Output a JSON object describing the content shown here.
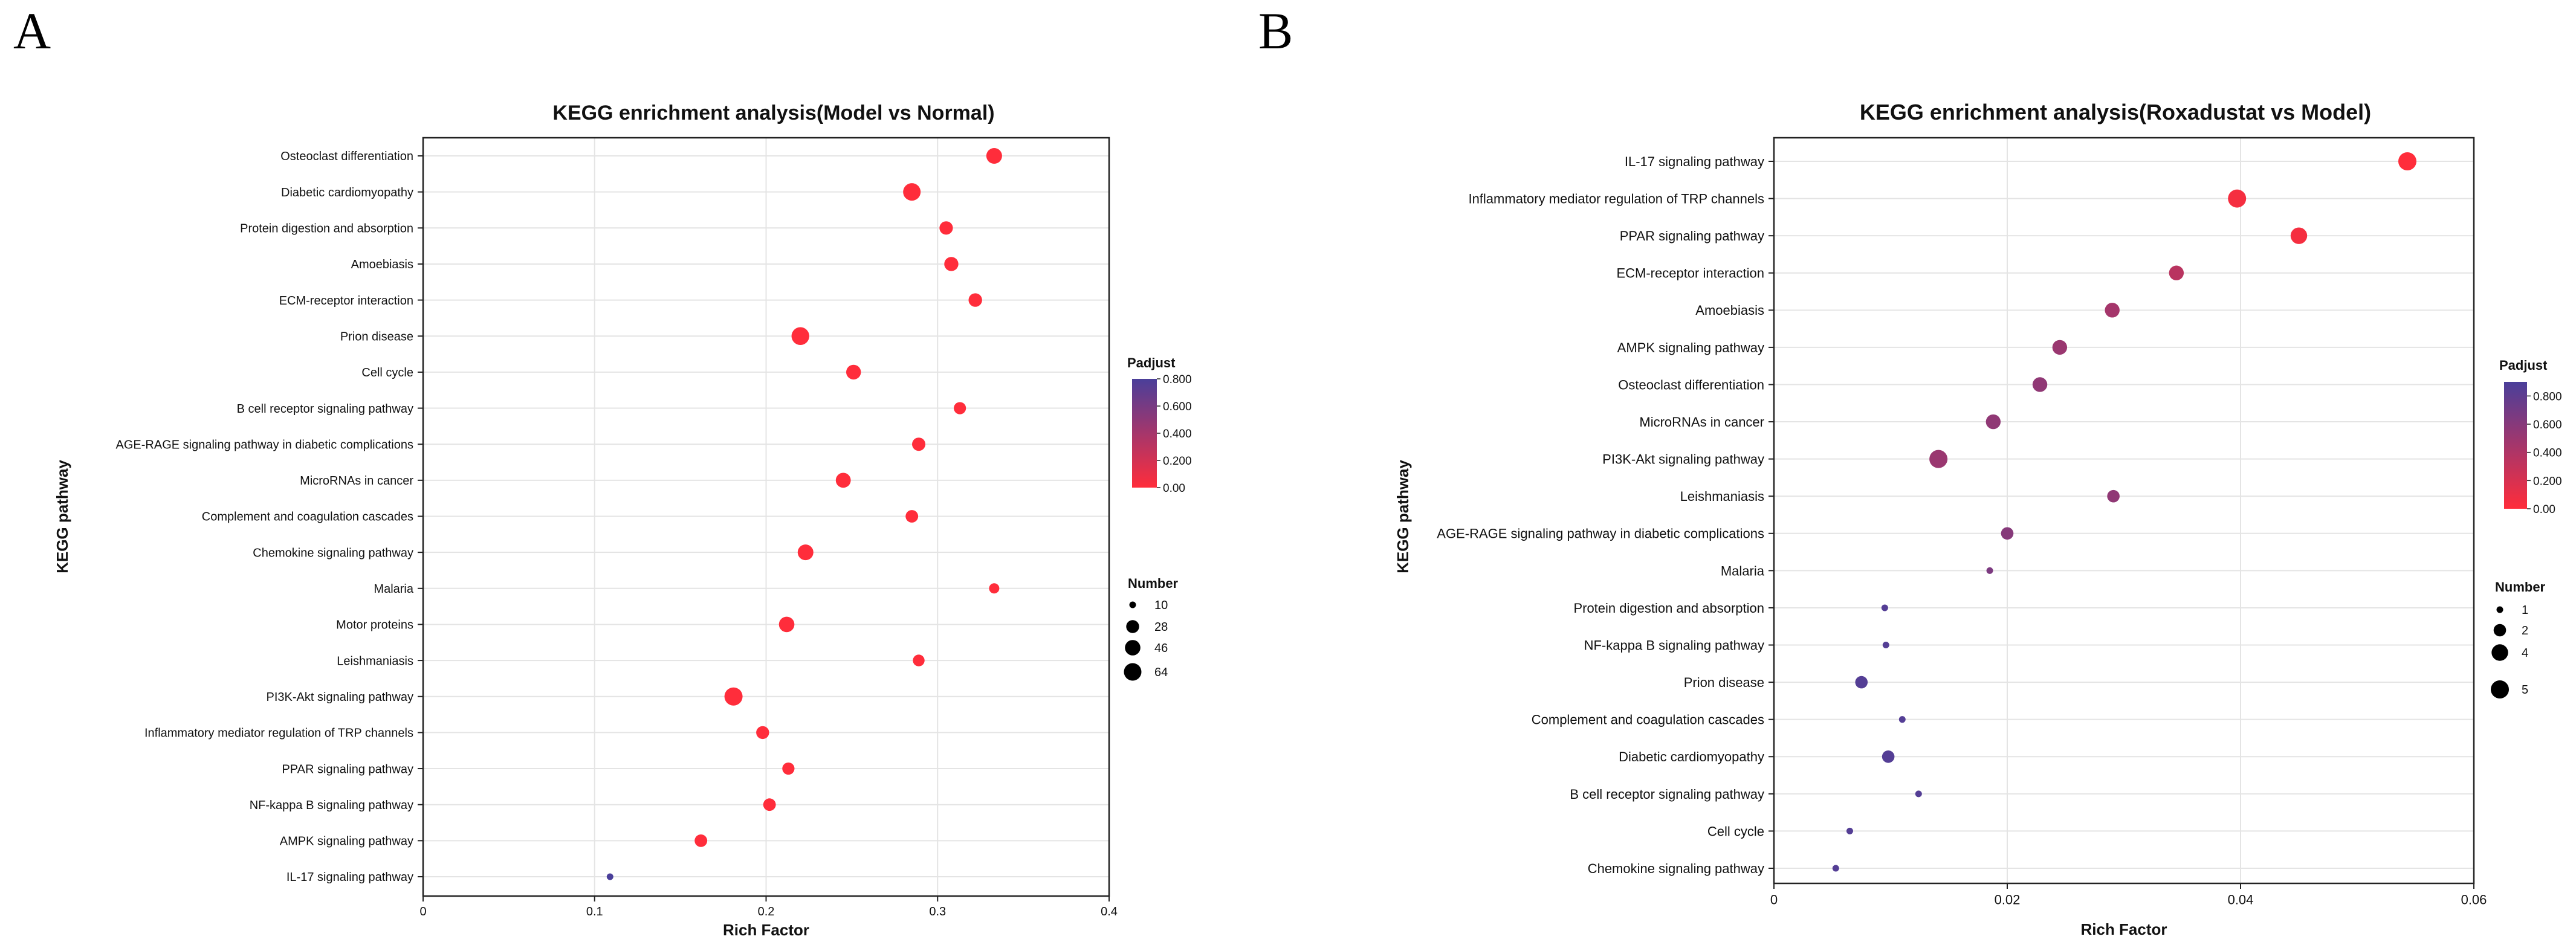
{
  "panels": [
    {
      "letter": "A",
      "chart_data": {
        "type": "scatter",
        "title": "KEGG enrichment analysis(Model vs Normal)",
        "xlabel": "Rich Factor",
        "ylabel": "KEGG pathway",
        "xlim": [
          0,
          0.4
        ],
        "xticks": [
          "0",
          "0.1",
          "0.2",
          "0.3",
          "0.4"
        ],
        "xtick_values": [
          0,
          0.1,
          0.2,
          0.3,
          0.4
        ],
        "grid": true,
        "color_legend": {
          "title": "Padjust",
          "ticks": [
            "0.800",
            "0.600",
            "0.400",
            "0.200",
            "0.00"
          ],
          "tick_values": [
            0.8,
            0.6,
            0.4,
            0.2,
            0.0
          ],
          "range": [
            0,
            0.8
          ],
          "low_color": "#ff2d3b",
          "high_color": "#4a3f9a"
        },
        "size_legend": {
          "title": "Number",
          "labels": [
            "10",
            "28",
            "46",
            "64"
          ],
          "values": [
            10,
            28,
            46,
            64
          ]
        },
        "points": [
          {
            "pathway": "Osteoclast differentiation",
            "rich_factor": 0.333,
            "number": 48,
            "padjust": 0.0
          },
          {
            "pathway": "Diabetic cardiomyopathy",
            "rich_factor": 0.285,
            "number": 64,
            "padjust": 0.0
          },
          {
            "pathway": "Protein digestion and absorption",
            "rich_factor": 0.305,
            "number": 31,
            "padjust": 0.0
          },
          {
            "pathway": "Amoebiasis",
            "rich_factor": 0.308,
            "number": 36,
            "padjust": 0.0
          },
          {
            "pathway": "ECM-receptor interaction",
            "rich_factor": 0.322,
            "number": 32,
            "padjust": 0.0
          },
          {
            "pathway": "Prion disease",
            "rich_factor": 0.22,
            "number": 66,
            "padjust": 0.0
          },
          {
            "pathway": "Cell cycle",
            "rich_factor": 0.251,
            "number": 40,
            "padjust": 0.0
          },
          {
            "pathway": "B cell receptor signaling pathway",
            "rich_factor": 0.313,
            "number": 24,
            "padjust": 0.0
          },
          {
            "pathway": "AGE-RAGE signaling pathway in diabetic complications",
            "rich_factor": 0.289,
            "number": 30,
            "padjust": 0.0
          },
          {
            "pathway": "MicroRNAs in cancer",
            "rich_factor": 0.245,
            "number": 42,
            "padjust": 0.0
          },
          {
            "pathway": "Complement and coagulation cascades",
            "rich_factor": 0.285,
            "number": 26,
            "padjust": 0.0
          },
          {
            "pathway": "Chemokine signaling pathway",
            "rich_factor": 0.223,
            "number": 48,
            "padjust": 0.0
          },
          {
            "pathway": "Malaria",
            "rich_factor": 0.333,
            "number": 16,
            "padjust": 0.0
          },
          {
            "pathway": "Motor proteins",
            "rich_factor": 0.212,
            "number": 46,
            "padjust": 0.0
          },
          {
            "pathway": "Leishmaniasis",
            "rich_factor": 0.289,
            "number": 22,
            "padjust": 0.0
          },
          {
            "pathway": "PI3K-Akt signaling pathway",
            "rich_factor": 0.181,
            "number": 70,
            "padjust": 0.0
          },
          {
            "pathway": "Inflammatory mediator regulation of TRP channels",
            "rich_factor": 0.198,
            "number": 28,
            "padjust": 0.0
          },
          {
            "pathway": "PPAR signaling pathway",
            "rich_factor": 0.213,
            "number": 24,
            "padjust": 0.0
          },
          {
            "pathway": "NF-kappa B signaling pathway",
            "rich_factor": 0.202,
            "number": 26,
            "padjust": 0.0
          },
          {
            "pathway": "AMPK signaling pathway",
            "rich_factor": 0.162,
            "number": 26,
            "padjust": 0.0
          },
          {
            "pathway": "IL-17 signaling pathway",
            "rich_factor": 0.109,
            "number": 10,
            "padjust": 0.8
          }
        ]
      }
    },
    {
      "letter": "B",
      "chart_data": {
        "type": "scatter",
        "title": "KEGG enrichment analysis(Roxadustat vs Model)",
        "xlabel": "Rich Factor",
        "ylabel": "KEGG pathway",
        "xlim": [
          0,
          0.06
        ],
        "xticks": [
          "0",
          "0.02",
          "0.04",
          "0.06"
        ],
        "xtick_values": [
          0,
          0.02,
          0.04,
          0.06
        ],
        "grid": true,
        "color_legend": {
          "title": "Padjust",
          "ticks": [
            "0.800",
            "0.600",
            "0.400",
            "0.200",
            "0.00"
          ],
          "tick_values": [
            0.8,
            0.6,
            0.4,
            0.2,
            0.0
          ],
          "range": [
            0,
            0.9
          ],
          "low_color": "#ff2d3b",
          "high_color": "#4a3f9a"
        },
        "size_legend": {
          "title": "Number",
          "labels": [
            "1",
            "2",
            "4",
            "5"
          ],
          "values": [
            1,
            2,
            4,
            5
          ]
        },
        "points": [
          {
            "pathway": "IL-17 signaling pathway",
            "rich_factor": 0.0543,
            "number": 5,
            "padjust": 0.0
          },
          {
            "pathway": "Inflammatory mediator regulation of TRP channels",
            "rich_factor": 0.0397,
            "number": 5,
            "padjust": 0.05
          },
          {
            "pathway": "PPAR signaling pathway",
            "rich_factor": 0.045,
            "number": 4,
            "padjust": 0.05
          },
          {
            "pathway": "ECM-receptor interaction",
            "rich_factor": 0.0345,
            "number": 3,
            "padjust": 0.35
          },
          {
            "pathway": "Amoebiasis",
            "rich_factor": 0.029,
            "number": 3,
            "padjust": 0.45
          },
          {
            "pathway": "AMPK signaling pathway",
            "rich_factor": 0.0245,
            "number": 3,
            "padjust": 0.5
          },
          {
            "pathway": "Osteoclast differentiation",
            "rich_factor": 0.0228,
            "number": 3,
            "padjust": 0.55
          },
          {
            "pathway": "MicroRNAs in cancer",
            "rich_factor": 0.0188,
            "number": 3,
            "padjust": 0.55
          },
          {
            "pathway": "PI3K-Akt signaling pathway",
            "rich_factor": 0.0141,
            "number": 5,
            "padjust": 0.5
          },
          {
            "pathway": "Leishmaniasis",
            "rich_factor": 0.0291,
            "number": 2,
            "padjust": 0.55
          },
          {
            "pathway": "AGE-RAGE signaling pathway in diabetic complications",
            "rich_factor": 0.02,
            "number": 2,
            "padjust": 0.6
          },
          {
            "pathway": "Malaria",
            "rich_factor": 0.0185,
            "number": 1,
            "padjust": 0.65
          },
          {
            "pathway": "Protein digestion and absorption",
            "rich_factor": 0.0095,
            "number": 1,
            "padjust": 0.85
          },
          {
            "pathway": "NF-kappa B signaling pathway",
            "rich_factor": 0.0096,
            "number": 1,
            "padjust": 0.85
          },
          {
            "pathway": "Prion disease",
            "rich_factor": 0.0075,
            "number": 2,
            "padjust": 0.85
          },
          {
            "pathway": "Complement and coagulation cascades",
            "rich_factor": 0.011,
            "number": 1,
            "padjust": 0.85
          },
          {
            "pathway": "Diabetic cardiomyopathy",
            "rich_factor": 0.0098,
            "number": 2,
            "padjust": 0.85
          },
          {
            "pathway": "B cell receptor signaling pathway",
            "rich_factor": 0.0124,
            "number": 1,
            "padjust": 0.85
          },
          {
            "pathway": "Cell cycle",
            "rich_factor": 0.0065,
            "number": 1,
            "padjust": 0.85
          },
          {
            "pathway": "Chemokine signaling pathway",
            "rich_factor": 0.0053,
            "number": 1,
            "padjust": 0.85
          }
        ]
      }
    }
  ]
}
